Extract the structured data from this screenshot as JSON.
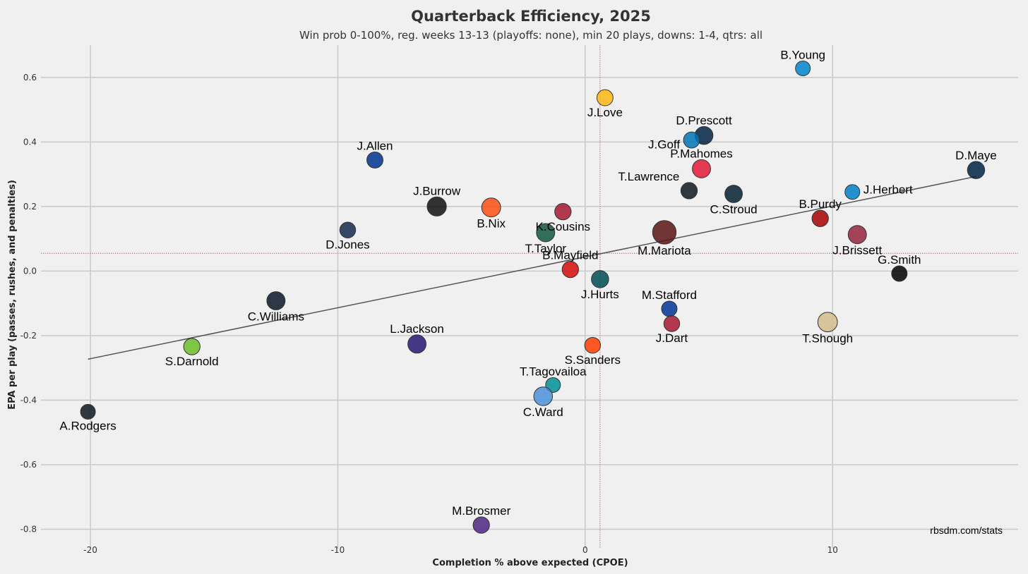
{
  "chart_data": {
    "type": "scatter",
    "title": "Quarterback Efficiency, 2025",
    "subtitle": "Win prob 0-100%, reg. weeks 13-13 (playoffs: none), min 20 plays, downs: 1-4, qtrs: all",
    "xlabel": "Completion % above expected (CPOE)",
    "ylabel": "EPA per play (passes, rushes, and penalties)",
    "credit": "rbsdm.com/stats",
    "xlim": [
      -22,
      17.5
    ],
    "ylim": [
      -0.86,
      0.7
    ],
    "x_ticks": [
      -20,
      -10,
      0,
      10
    ],
    "y_ticks": [
      0.6,
      0.4,
      0.2,
      0.0,
      -0.2,
      -0.4,
      -0.6,
      -0.8
    ],
    "x_tick_labels": [
      "-20",
      "-10",
      "0",
      "10"
    ],
    "y_tick_labels": [
      "0.6",
      "0.4",
      "0.2",
      "0.0",
      "-0.2",
      "-0.4",
      "-0.6",
      "-0.8"
    ],
    "grid": true,
    "reference_lines": {
      "x": 0.6,
      "y": 0.055
    },
    "trend_line": {
      "x": [
        -20.1,
        15.8
      ],
      "y": [
        -0.273,
        0.293
      ]
    },
    "points": [
      {
        "name": "B.Young",
        "x": 8.8,
        "y": 0.628,
        "plays": 20,
        "color": "#0085ca",
        "label_pos": "above"
      },
      {
        "name": "J.Love",
        "x": 0.8,
        "y": 0.537,
        "plays": 28,
        "color": "#ffb612",
        "label_pos": "below"
      },
      {
        "name": "D.Prescott",
        "x": 4.8,
        "y": 0.42,
        "plays": 42,
        "color": "#002244",
        "label_pos": "above"
      },
      {
        "name": "J.Goff",
        "x": 4.3,
        "y": 0.406,
        "plays": 28,
        "color": "#0076b6",
        "label_pos": "left"
      },
      {
        "name": "P.Mahomes",
        "x": 4.7,
        "y": 0.317,
        "plays": 44,
        "color": "#e31837",
        "label_pos": "above"
      },
      {
        "name": "D.Maye",
        "x": 15.8,
        "y": 0.313,
        "plays": 36,
        "color": "#002244",
        "label_pos": "above"
      },
      {
        "name": "J.Allen",
        "x": -8.5,
        "y": 0.344,
        "plays": 28,
        "color": "#00338d",
        "label_pos": "above"
      },
      {
        "name": "T.Lawrence",
        "x": 4.2,
        "y": 0.249,
        "plays": 30,
        "color": "#101820",
        "label_pos": "above-left"
      },
      {
        "name": "C.Stroud",
        "x": 6.0,
        "y": 0.239,
        "plays": 38,
        "color": "#03202f",
        "label_pos": "below"
      },
      {
        "name": "J.Herbert",
        "x": 10.8,
        "y": 0.245,
        "plays": 20,
        "color": "#0080c6",
        "label_pos": "right"
      },
      {
        "name": "J.Burrow",
        "x": -6.0,
        "y": 0.2,
        "plays": 52,
        "color": "#101010",
        "label_pos": "above"
      },
      {
        "name": "B.Nix",
        "x": -3.8,
        "y": 0.197,
        "plays": 50,
        "color": "#fb4f14",
        "label_pos": "below"
      },
      {
        "name": "K.Cousins",
        "x": -0.9,
        "y": 0.184,
        "plays": 30,
        "color": "#a71930",
        "label_pos": "below"
      },
      {
        "name": "B.Purdy",
        "x": 9.5,
        "y": 0.163,
        "plays": 30,
        "color": "#aa0000",
        "label_pos": "above"
      },
      {
        "name": "D.Jones",
        "x": -9.6,
        "y": 0.127,
        "plays": 26,
        "color": "#13294b",
        "label_pos": "below"
      },
      {
        "name": "T.Taylor",
        "x": -1.6,
        "y": 0.119,
        "plays": 44,
        "color": "#125740",
        "label_pos": "below"
      },
      {
        "name": "M.Mariota",
        "x": 3.2,
        "y": 0.12,
        "plays": 100,
        "color": "#5a1414",
        "label_pos": "below"
      },
      {
        "name": "J.Brissett",
        "x": 11.0,
        "y": 0.113,
        "plays": 44,
        "color": "#97233f",
        "label_pos": "below"
      },
      {
        "name": "B.Mayfield",
        "x": -0.6,
        "y": 0.005,
        "plays": 30,
        "color": "#d50a0a",
        "label_pos": "above"
      },
      {
        "name": "G.Smith",
        "x": 12.7,
        "y": -0.008,
        "plays": 24,
        "color": "#000000",
        "label_pos": "above"
      },
      {
        "name": "J.Hurts",
        "x": 0.6,
        "y": -0.025,
        "plays": 36,
        "color": "#004c54",
        "label_pos": "below"
      },
      {
        "name": "C.Williams",
        "x": -12.5,
        "y": -0.092,
        "plays": 44,
        "color": "#0b162a",
        "label_pos": "below"
      },
      {
        "name": "M.Stafford",
        "x": 3.4,
        "y": -0.117,
        "plays": 24,
        "color": "#003594",
        "label_pos": "above"
      },
      {
        "name": "T.Shough",
        "x": 9.8,
        "y": -0.158,
        "plays": 56,
        "color": "#d3bc8d",
        "label_pos": "below"
      },
      {
        "name": "J.Dart",
        "x": 3.5,
        "y": -0.163,
        "plays": 26,
        "color": "#a71930",
        "label_pos": "below"
      },
      {
        "name": "L.Jackson",
        "x": -6.8,
        "y": -0.226,
        "plays": 44,
        "color": "#241773",
        "label_pos": "above"
      },
      {
        "name": "S.Darnold",
        "x": -15.9,
        "y": -0.234,
        "plays": 30,
        "color": "#69be28",
        "label_pos": "below"
      },
      {
        "name": "S.Sanders",
        "x": 0.3,
        "y": -0.23,
        "plays": 26,
        "color": "#ff3c00",
        "label_pos": "below"
      },
      {
        "name": "T.Tagovailoa",
        "x": -1.3,
        "y": -0.353,
        "plays": 20,
        "color": "#008e97",
        "label_pos": "above"
      },
      {
        "name": "C.Ward",
        "x": -1.7,
        "y": -0.388,
        "plays": 48,
        "color": "#4b92db",
        "label_pos": "below"
      },
      {
        "name": "A.Rodgers",
        "x": -20.1,
        "y": -0.436,
        "plays": 20,
        "color": "#101820",
        "label_pos": "below"
      },
      {
        "name": "M.Brosmer",
        "x": -4.2,
        "y": -0.787,
        "plays": 30,
        "color": "#4f2683",
        "label_pos": "above"
      }
    ]
  }
}
